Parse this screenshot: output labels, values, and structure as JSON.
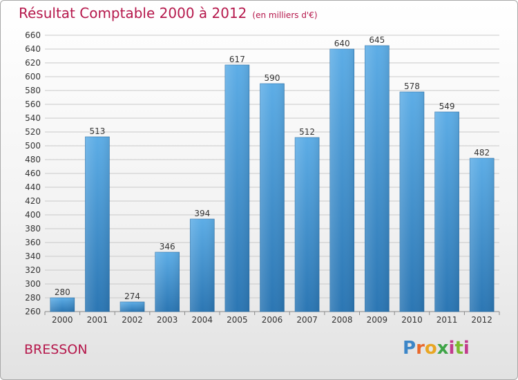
{
  "header": {
    "title": "Résultat Comptable 2000 à 2012",
    "subtitle": "(en milliers d'€)"
  },
  "footer": {
    "city": "BRESSON",
    "logo_letters": [
      "P",
      "r",
      "o",
      "x",
      "i",
      "t",
      "i"
    ]
  },
  "colors": {
    "bar_light": "#5dade6",
    "bar_dark": "#2b76b3",
    "title": "#b5174b",
    "grid": "#c9c9c9"
  },
  "chart_data": {
    "type": "bar",
    "categories": [
      "2000",
      "2001",
      "2002",
      "2003",
      "2004",
      "2005",
      "2006",
      "2007",
      "2008",
      "2009",
      "2010",
      "2011",
      "2012"
    ],
    "values": [
      280,
      513,
      274,
      346,
      394,
      617,
      590,
      512,
      640,
      645,
      578,
      549,
      482
    ],
    "data_labels": [
      "280",
      "513",
      "274",
      "346",
      "394",
      "617",
      "590",
      "512",
      "640",
      "645",
      "578",
      "549",
      "482"
    ],
    "ylim": [
      260,
      660
    ],
    "yticks": [
      "260",
      "280",
      "300",
      "320",
      "340",
      "360",
      "380",
      "400",
      "420",
      "440",
      "460",
      "480",
      "500",
      "520",
      "540",
      "560",
      "580",
      "600",
      "620",
      "640",
      "660"
    ],
    "grid": true
  }
}
